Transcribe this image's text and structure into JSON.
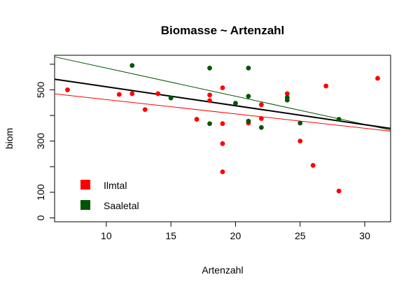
{
  "chart_data": {
    "type": "scatter",
    "title": "Biomasse ~ Artenzahl",
    "xlabel": "Artenzahl",
    "ylabel": "biom",
    "xlim": [
      6,
      32
    ],
    "ylim": [
      -15,
      635
    ],
    "x_ticks": [
      10,
      15,
      20,
      25,
      30
    ],
    "y_ticks": [
      0,
      100,
      200,
      300,
      400,
      500,
      600
    ],
    "y_tick_labels": [
      "0",
      "100",
      "",
      "300",
      "",
      "500",
      ""
    ],
    "legend_position": "bottom-left",
    "series": [
      {
        "name": "Ilmtal",
        "color": "#ff0000",
        "points": [
          [
            7,
            500
          ],
          [
            11,
            482
          ],
          [
            12,
            485
          ],
          [
            13,
            423
          ],
          [
            14,
            485
          ],
          [
            17,
            385
          ],
          [
            18,
            480
          ],
          [
            18,
            458
          ],
          [
            19,
            508
          ],
          [
            19,
            368
          ],
          [
            19,
            290
          ],
          [
            19,
            180
          ],
          [
            21,
            370
          ],
          [
            22,
            442
          ],
          [
            22,
            388
          ],
          [
            24,
            485
          ],
          [
            25,
            300
          ],
          [
            26,
            205
          ],
          [
            27,
            515
          ],
          [
            28,
            105
          ],
          [
            31,
            545
          ]
        ],
        "fit_line": {
          "intercept": 518,
          "slope": -5.6
        }
      },
      {
        "name": "Saaletal",
        "color": "#005500",
        "points": [
          [
            12,
            595
          ],
          [
            15,
            468
          ],
          [
            18,
            585
          ],
          [
            18,
            368
          ],
          [
            20,
            448
          ],
          [
            21,
            585
          ],
          [
            21,
            475
          ],
          [
            21,
            378
          ],
          [
            22,
            353
          ],
          [
            24,
            470
          ],
          [
            24,
            460
          ],
          [
            25,
            370
          ],
          [
            28,
            385
          ]
        ],
        "fit_line": {
          "intercept": 695,
          "slope": -11.0
        }
      }
    ],
    "overall_fit": {
      "color": "#000000",
      "intercept": 586,
      "slope": -7.4
    }
  }
}
